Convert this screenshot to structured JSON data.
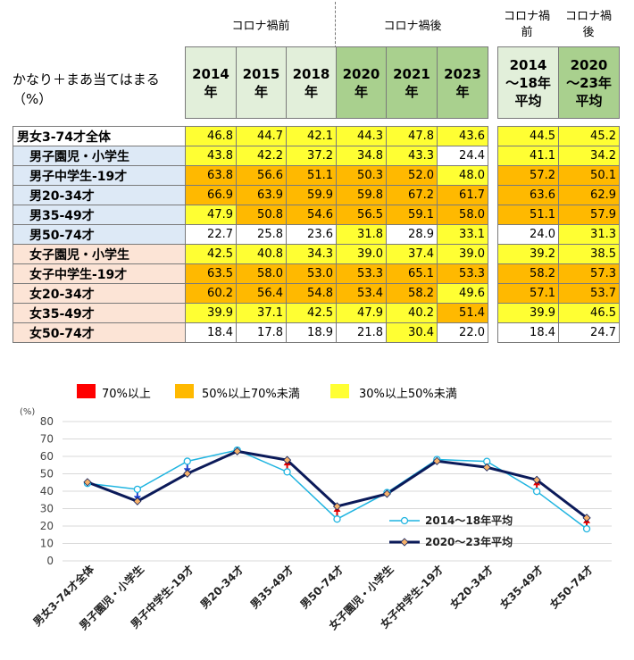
{
  "labels": {
    "top_label": "かなり＋まあ当てはまる",
    "unit_label": "（%）",
    "pre_group": "コロナ禍前",
    "post_group": "コロナ禍後",
    "pre_avg_group": "コロナ禍前",
    "post_avg_group": "コロナ禍後"
  },
  "colors": {
    "red": "#ff0000",
    "orange": "#ffb900",
    "yellow": "#ffff33",
    "pre_header_bg": "#e2efda",
    "post_header_bg": "#a9d08e",
    "row_blue": "#dde9f6",
    "row_pink": "#fce4d6",
    "line_pre": "#1fb4e0",
    "line_post": "#0b1a59",
    "marker_post": "#f6b26b"
  },
  "table": {
    "columns": [
      {
        "year": "2014",
        "suffix": "年"
      },
      {
        "year": "2015",
        "suffix": "年"
      },
      {
        "year": "2018",
        "suffix": "年"
      },
      {
        "year": "2020",
        "suffix": "年"
      },
      {
        "year": "2021",
        "suffix": "年"
      },
      {
        "year": "2023",
        "suffix": "年"
      }
    ],
    "avg_columns": [
      {
        "line1": "2014",
        "line2": "～18年",
        "line3": "平均"
      },
      {
        "line1": "2020",
        "line2": "～23年",
        "line3": "平均"
      }
    ],
    "rows": [
      {
        "label": "男女3-74才全体",
        "group": "all",
        "values": [
          "46.8",
          "44.7",
          "42.1",
          "44.3",
          "47.8",
          "43.6"
        ],
        "avg": [
          "44.5",
          "45.2"
        ]
      },
      {
        "label": "男子園児・小学生",
        "group": "male",
        "values": [
          "43.8",
          "42.2",
          "37.2",
          "34.8",
          "43.3",
          "24.4"
        ],
        "avg": [
          "41.1",
          "34.2"
        ]
      },
      {
        "label": "男子中学生-19才",
        "group": "male",
        "values": [
          "63.8",
          "56.6",
          "51.1",
          "50.3",
          "52.0",
          "48.0"
        ],
        "avg": [
          "57.2",
          "50.1"
        ]
      },
      {
        "label": "男20-34才",
        "group": "male",
        "values": [
          "66.9",
          "63.9",
          "59.9",
          "59.8",
          "67.2",
          "61.7"
        ],
        "avg": [
          "63.6",
          "62.9"
        ]
      },
      {
        "label": "男35-49才",
        "group": "male",
        "values": [
          "47.9",
          "50.8",
          "54.6",
          "56.5",
          "59.1",
          "58.0"
        ],
        "avg": [
          "51.1",
          "57.9"
        ]
      },
      {
        "label": "男50-74才",
        "group": "male",
        "values": [
          "22.7",
          "25.8",
          "23.6",
          "31.8",
          "28.9",
          "33.1"
        ],
        "avg": [
          "24.0",
          "31.3"
        ]
      },
      {
        "label": "女子園児・小学生",
        "group": "female",
        "values": [
          "42.5",
          "40.8",
          "34.3",
          "39.0",
          "37.4",
          "39.0"
        ],
        "avg": [
          "39.2",
          "38.5"
        ]
      },
      {
        "label": "女子中学生-19才",
        "group": "female",
        "values": [
          "63.5",
          "58.0",
          "53.0",
          "53.3",
          "65.1",
          "53.3"
        ],
        "avg": [
          "58.2",
          "57.3"
        ]
      },
      {
        "label": "女20-34才",
        "group": "female",
        "values": [
          "60.2",
          "56.4",
          "54.8",
          "53.4",
          "58.2",
          "49.6"
        ],
        "avg": [
          "57.1",
          "53.7"
        ]
      },
      {
        "label": "女35-49才",
        "group": "female",
        "values": [
          "39.9",
          "37.1",
          "42.5",
          "47.9",
          "40.2",
          "51.4"
        ],
        "avg": [
          "39.9",
          "46.5"
        ]
      },
      {
        "label": "女50-74才",
        "group": "female",
        "values": [
          "18.4",
          "17.8",
          "18.9",
          "21.8",
          "30.4",
          "22.0"
        ],
        "avg": [
          "18.4",
          "24.7"
        ]
      }
    ]
  },
  "legend": {
    "red": "70%以上",
    "orange": "50%以上70%未満",
    "yellow": "30%以上50%未満"
  },
  "chart_data": {
    "type": "line",
    "unit": "(%)",
    "ylim": [
      0,
      80
    ],
    "yticks": [
      "0",
      "10",
      "20",
      "30",
      "40",
      "50",
      "60",
      "70",
      "80"
    ],
    "grid": true,
    "legend_position": "bottom-right",
    "categories": [
      "男女3-74才全体",
      "男子園児・小学生",
      "男子中学生-19才",
      "男20-34才",
      "男35-49才",
      "男50-74才",
      "女子園児・小学生",
      "女子中学生-19才",
      "女20-34才",
      "女35-49才",
      "女50-74才"
    ],
    "series": [
      {
        "name": "2014～18年平均",
        "values": [
          44.5,
          41.1,
          57.2,
          63.6,
          51.1,
          24.0,
          39.2,
          58.2,
          57.1,
          39.9,
          18.4
        ]
      },
      {
        "name": "2020～23年平均",
        "values": [
          45.2,
          34.2,
          50.1,
          62.9,
          57.9,
          31.3,
          38.5,
          57.3,
          53.7,
          46.5,
          24.7
        ]
      }
    ]
  }
}
